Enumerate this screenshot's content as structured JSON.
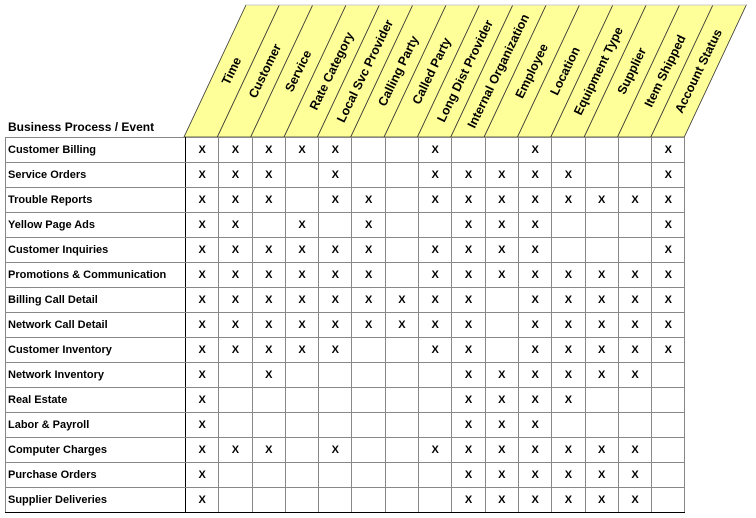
{
  "corner_label": "Business Process / Event",
  "header_fill": "#FFFF99",
  "columns": [
    "Time",
    "Customer",
    "Service",
    "Rate Category",
    "Local Svc Provider",
    "Calling Party",
    "Called Party",
    "Long Dist Provider",
    "Internal Organization",
    "Employee",
    "Location",
    "Equipment Type",
    "Supplier",
    "Item Shipped",
    "Account Status"
  ],
  "mark": "X",
  "rows": [
    {
      "label": "Customer Billing",
      "cells": "111110010010001"
    },
    {
      "label": "Service Orders",
      "cells": "111010011111001"
    },
    {
      "label": "Trouble Reports",
      "cells": "111011011111111"
    },
    {
      "label": "Yellow Page Ads",
      "cells": "110101001110001"
    },
    {
      "label": "Customer Inquiries",
      "cells": "111111011110001"
    },
    {
      "label": "Promotions & Communication",
      "cells": "111111011111111"
    },
    {
      "label": "Billing Call Detail",
      "cells": "111111111011111"
    },
    {
      "label": "Network Call Detail",
      "cells": "111111111011111"
    },
    {
      "label": "Customer Inventory",
      "cells": "111110011011111"
    },
    {
      "label": "Network Inventory",
      "cells": "101000001111110"
    },
    {
      "label": "Real Estate",
      "cells": "100000001111000"
    },
    {
      "label": "Labor & Payroll",
      "cells": "100000001110000"
    },
    {
      "label": "Computer Charges",
      "cells": "111010011111110"
    },
    {
      "label": "Purchase Orders",
      "cells": "100000001111110"
    },
    {
      "label": "Supplier Deliveries",
      "cells": "100000001111110"
    }
  ]
}
